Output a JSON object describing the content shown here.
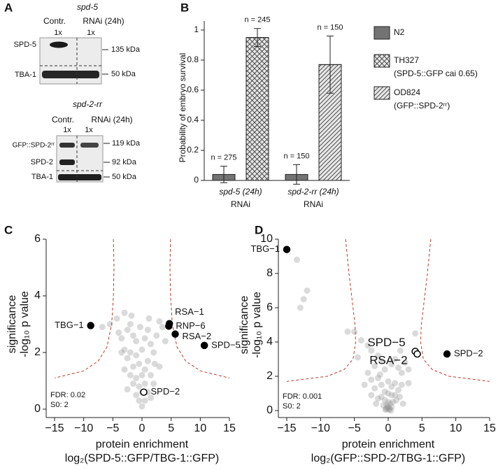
{
  "panel_a": {
    "label": "A",
    "blots": [
      {
        "gene": "spd-5",
        "columns": [
          "Contr.",
          "RNAi (24h)"
        ],
        "loading": [
          "1x",
          "1x"
        ],
        "proteins": [
          "SPD-5",
          "TBA-1"
        ],
        "sizes": [
          "135 kDa",
          "50 kDa"
        ]
      },
      {
        "gene": "spd-2-rr",
        "columns": [
          "Contr.",
          "RNAi (24h)"
        ],
        "loading": [
          "1x",
          "1x"
        ],
        "proteins": [
          "GFP::SPD-2ʳʳ",
          "SPD-2",
          "TBA-1"
        ],
        "sizes": [
          "119 kDa",
          "92 kDa",
          "50 kDa"
        ]
      }
    ]
  },
  "chart_data": [
    {
      "label": "B",
      "type": "bar",
      "ylabel": "Probability of embryo survival",
      "categories": [
        "spd-5 (24h)",
        "spd-2-rr (24h)"
      ],
      "category_note": "RNAi",
      "ylim": [
        0,
        1.06
      ],
      "yticks": [
        0,
        0.2,
        0.4,
        0.6,
        0.8,
        1
      ],
      "legend": "right",
      "series": [
        {
          "name": "N2",
          "color": "#737373",
          "pattern": "none",
          "values": [
            0.04,
            0.04
          ],
          "errors": [
            0.055,
            0.065
          ],
          "n_labels": [
            "n = 275",
            "n = 150"
          ]
        },
        {
          "name": "TH327",
          "description": "(SPD-5::GFP cai 0.65)",
          "color": "#e6e6e6",
          "pattern": "crosshatch",
          "values": [
            0.95,
            null
          ],
          "errors": [
            0.06,
            null
          ],
          "n_labels": [
            "n = 245",
            null
          ]
        },
        {
          "name": "OD824",
          "description": "(GFP::SPD-2ʳʳ)",
          "color": "#e6e6e6",
          "pattern": "diagonal",
          "values": [
            null,
            0.77
          ],
          "errors": [
            null,
            0.19
          ],
          "n_labels": [
            null,
            "n = 150"
          ]
        }
      ]
    },
    {
      "label": "C",
      "type": "scatter",
      "ylabel": "significance",
      "ylabel2": "-log₁₀ p value",
      "xlabel": "protein enrichment",
      "xlabel2": "log₂(SPD-5::GFP/TBG-1::GFP)",
      "xlim": [
        -15,
        15
      ],
      "xticks": [
        {
          "value": -15,
          "label": "−15"
        },
        {
          "value": -10,
          "label": "−10"
        },
        {
          "value": -5,
          "label": "−5"
        },
        0,
        5,
        10,
        15
      ],
      "ylim": [
        0,
        6
      ],
      "yticks": [
        0,
        2,
        4,
        6
      ],
      "background": {
        "color": "#969696",
        "opacity": 0.35,
        "x": [
          -5.5,
          -4.3,
          -3,
          -4,
          -3.5,
          -2.5,
          -2,
          -1.5,
          -1,
          -3,
          -2,
          -2.5,
          -1,
          0,
          0.5,
          1,
          1.5,
          2,
          2.5,
          3,
          3.5,
          -1.5,
          -0.5,
          0.5,
          1,
          -2,
          -1,
          0,
          1.5,
          -1.5,
          -0.5,
          0.5,
          1,
          -1,
          0,
          0.5,
          -0.5,
          0,
          1.5,
          -2.5,
          -3,
          2,
          3,
          -3.5,
          4,
          -6.8,
          2.2,
          -0.3,
          1.2,
          -1.8
        ],
        "y": [
          3.0,
          3.2,
          3.4,
          2.7,
          2.5,
          2.8,
          3.0,
          2.6,
          2.4,
          2.1,
          2.0,
          1.8,
          1.9,
          2.1,
          2.5,
          2.8,
          2.3,
          2.0,
          2.6,
          3.1,
          2.9,
          1.5,
          1.6,
          1.4,
          1.7,
          1.2,
          1.1,
          1.2,
          1.2,
          0.9,
          0.8,
          0.9,
          0.6,
          0.5,
          0.6,
          0.3,
          0.3,
          0.1,
          0.4,
          0.7,
          1.4,
          0.9,
          1.5,
          2.0,
          2.4,
          2.9,
          1.6,
          2.9,
          3.2,
          3.3
        ]
      },
      "highlights": [
        {
          "label": "TBG−1",
          "x": -8.8,
          "y": 2.95,
          "filled": true
        },
        {
          "label": "RSA−1",
          "x": 4.7,
          "y": 3.02,
          "filled": true
        },
        {
          "label": "RNP−6",
          "x": 4.6,
          "y": 2.93,
          "filled": true
        },
        {
          "label": "RSA−2",
          "x": 5.7,
          "y": 2.65,
          "filled": true
        },
        {
          "label": "SPD−5",
          "x": 10.7,
          "y": 2.25,
          "filled": true
        },
        {
          "label": "SPD−2",
          "x": 0.3,
          "y": 0.6,
          "filled": false
        }
      ],
      "threshold": {
        "color": "#c0392b",
        "branches": [
          {
            "x": [
              -4.9,
              -4.8,
              -4.9,
              -5.2,
              -6,
              -7.5,
              -10,
              -15
            ],
            "y": [
              6,
              5,
              4,
              3,
              2.2,
              1.7,
              1.35,
              1.1
            ]
          },
          {
            "x": [
              4.9,
              4.8,
              4.9,
              5.2,
              6,
              7.5,
              10,
              15
            ],
            "y": [
              6,
              5,
              4,
              3,
              2.2,
              1.7,
              1.35,
              1.1
            ]
          }
        ]
      },
      "annotations": [
        "FDR: 0.02",
        "S0: 2"
      ]
    },
    {
      "label": "D",
      "type": "scatter",
      "ylabel": "significance",
      "ylabel2": "-log₁₀ p value",
      "xlabel": "protein enrichment",
      "xlabel2": "log₂(GFP::SPD-2/TBG-1::GFP)",
      "xlim": [
        -15,
        15
      ],
      "xticks": [
        {
          "value": -15,
          "label": "−15"
        },
        {
          "value": -10,
          "label": "−10"
        },
        {
          "value": -5,
          "label": "−5"
        },
        0,
        5,
        10,
        15
      ],
      "ylim": [
        0,
        10
      ],
      "yticks": [
        0,
        2,
        4,
        6,
        8,
        10
      ],
      "background": {
        "color": "#969696",
        "opacity": 0.35,
        "x": [
          -13.5,
          -12,
          -12.5,
          -13,
          -6,
          -5,
          -4,
          -3,
          -2.5,
          -1.5,
          -1,
          -2,
          -0.5,
          0.5,
          1,
          1.5,
          2,
          2.5,
          3,
          -3,
          -2.5,
          -1.5,
          -1,
          0,
          0.5,
          1,
          1.5,
          2,
          -2,
          -0.5,
          0,
          0.5,
          1,
          -1,
          -1.5,
          -0.5,
          0,
          0.3,
          0.7,
          1.2,
          -0.2,
          0,
          0.2,
          -0.3,
          0.5,
          -0.7,
          1.7,
          -2.5,
          3,
          -3.5,
          0.1,
          -0.1,
          0.4,
          -0.4,
          2.2,
          -1.8,
          4,
          -4.5,
          -1.2,
          1.8
        ],
        "y": [
          8.8,
          7,
          6.5,
          6,
          4.6,
          4.6,
          4.1,
          3.8,
          3.5,
          3.2,
          2.9,
          2.6,
          2.4,
          2.7,
          3.0,
          2.5,
          2.2,
          2.8,
          2.4,
          2.2,
          1.8,
          1.9,
          1.5,
          1.7,
          1.4,
          1.6,
          1.2,
          1.5,
          1.3,
          1.1,
          1.0,
          0.9,
          0.9,
          0.8,
          0.7,
          0.6,
          0.5,
          0.4,
          0.5,
          0.6,
          0.3,
          0.2,
          0.1,
          0.1,
          0.2,
          0.3,
          0.8,
          0.9,
          1.6,
          1.5,
          0.05,
          0.15,
          0.0,
          0.05,
          0.4,
          0.4,
          4.5,
          3.1,
          2.1,
          3.5
        ]
      },
      "highlights": [
        {
          "label": "TBG−1",
          "x": -15,
          "y": 9.4,
          "filled": true
        },
        {
          "label": "SPD−2",
          "x": 8.7,
          "y": 3.3,
          "filled": true
        },
        {
          "label": "SPD−5",
          "x": 4.0,
          "y": 3.45,
          "filled": false
        },
        {
          "label": "RSA−2",
          "x": 4.3,
          "y": 3.3,
          "filled": false
        }
      ],
      "threshold": {
        "color": "#c0392b",
        "branches": [
          {
            "x": [
              -6.3,
              -5.8,
              -5.2,
              -4.9,
              -4.8,
              -5.2,
              -6.5,
              -9,
              -15
            ],
            "y": [
              10,
              8,
              6,
              5,
              4,
              3,
              2.4,
              2,
              1.7
            ]
          },
          {
            "x": [
              6.3,
              5.8,
              5.2,
              4.9,
              4.8,
              5.2,
              6.5,
              9,
              15
            ],
            "y": [
              10,
              8,
              6,
              5,
              4,
              3,
              2.4,
              2,
              1.7
            ]
          }
        ]
      },
      "annotations": [
        "FDR: 0.001",
        "S0: 2"
      ]
    }
  ]
}
